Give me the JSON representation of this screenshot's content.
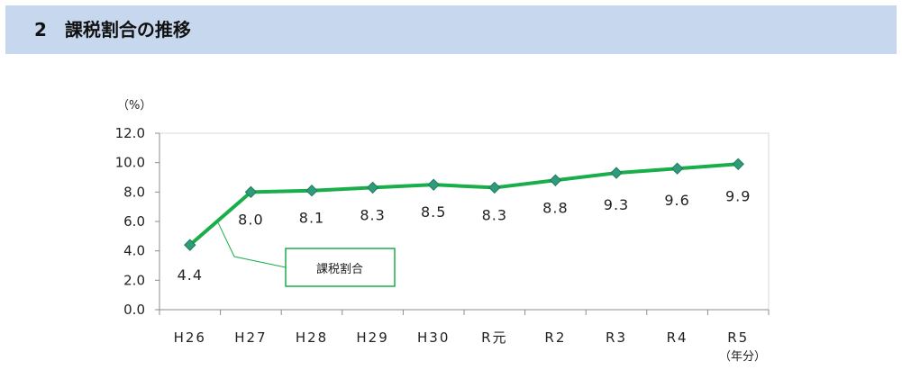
{
  "header": {
    "title": "2　課税割合の推移"
  },
  "chart_data": {
    "type": "line",
    "categories": [
      "H26",
      "H27",
      "H28",
      "H29",
      "H30",
      "R元",
      "R2",
      "R3",
      "R4",
      "R5"
    ],
    "series": [
      {
        "name": "課税割合",
        "values": [
          4.4,
          8.0,
          8.1,
          8.3,
          8.5,
          8.3,
          8.8,
          9.3,
          9.6,
          9.9
        ],
        "color": "#1aae4a"
      }
    ],
    "data_labels": [
      "4.4",
      "8.0",
      "8.1",
      "8.3",
      "8.5",
      "8.3",
      "8.8",
      "9.3",
      "9.6",
      "9.9"
    ],
    "y_unit": "（%）",
    "x_unit": "（年分）",
    "ylim": [
      0,
      12
    ],
    "yticks": [
      "0.0",
      "2.0",
      "4.0",
      "6.0",
      "8.0",
      "10.0",
      "12.0"
    ],
    "legend": {
      "label": "課税割合",
      "placement": "callout",
      "border_color": "#1aae4a"
    },
    "marker_color": "#2e9b7a",
    "grid": false
  }
}
